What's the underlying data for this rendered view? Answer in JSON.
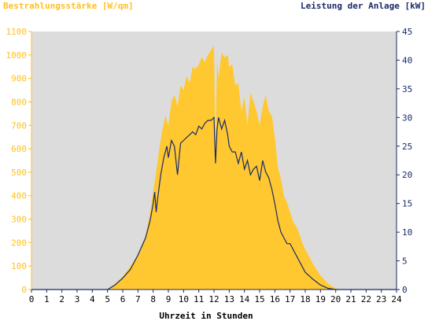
{
  "chart_data": {
    "type": "area",
    "title_left": "Bestrahlungsstärke [W/qm]",
    "title_right": "Leistung der Anlage [kW]",
    "xlabel": "Uhrzeit in Stunden",
    "xlim": [
      0,
      24
    ],
    "ylim_left": [
      0,
      1100
    ],
    "ylim_right": [
      0,
      45
    ],
    "x_ticks": [
      "0",
      "1",
      "2",
      "3",
      "4",
      "5",
      "6",
      "7",
      "8",
      "9",
      "10",
      "11",
      "12",
      "13",
      "14",
      "15",
      "16",
      "17",
      "18",
      "19",
      "20",
      "21",
      "22",
      "23",
      "24"
    ],
    "y_left_ticks": [
      "0",
      "100",
      "200",
      "300",
      "400",
      "500",
      "600",
      "700",
      "800",
      "900",
      "1000",
      "1100"
    ],
    "y_right_ticks": [
      "0",
      "5",
      "10",
      "15",
      "20",
      "25",
      "30",
      "35",
      "40",
      "45"
    ],
    "grid": false,
    "colors": {
      "irradiance": "#FFC830",
      "power": "#1A2A6A",
      "plot_bg": "#DCDCDC",
      "left_axis": "#FFC020",
      "right_axis": "#1A2A6A"
    },
    "series": [
      {
        "name": "Bestrahlungsstärke [W/qm]",
        "axis": "left",
        "style": "area",
        "x": [
          0,
          5,
          5.5,
          6,
          6.5,
          7,
          7.5,
          7.8,
          8,
          8.2,
          8.4,
          8.6,
          8.8,
          9,
          9.2,
          9.4,
          9.6,
          9.8,
          10,
          10.2,
          10.4,
          10.6,
          10.8,
          11,
          11.2,
          11.4,
          11.6,
          11.8,
          12,
          12.1,
          12.2,
          12.3,
          12.5,
          12.7,
          12.9,
          13,
          13.2,
          13.4,
          13.6,
          13.8,
          14,
          14.2,
          14.4,
          14.6,
          14.8,
          15,
          15.2,
          15.4,
          15.6,
          15.8,
          16,
          16.2,
          16.4,
          16.6,
          16.8,
          17,
          17.2,
          17.4,
          17.6,
          17.8,
          18,
          18.5,
          19,
          19.5,
          20,
          20.3,
          24
        ],
        "values": [
          0,
          0,
          25,
          55,
          100,
          150,
          230,
          330,
          420,
          500,
          600,
          680,
          740,
          700,
          800,
          830,
          780,
          870,
          850,
          910,
          880,
          950,
          940,
          960,
          990,
          970,
          1000,
          1020,
          1040,
          600,
          980,
          900,
          1010,
          990,
          1000,
          950,
          960,
          870,
          880,
          760,
          820,
          700,
          840,
          800,
          760,
          700,
          780,
          830,
          760,
          740,
          650,
          520,
          470,
          400,
          370,
          330,
          290,
          270,
          240,
          200,
          170,
          110,
          60,
          25,
          5,
          0,
          0
        ]
      },
      {
        "name": "Leistung der Anlage [kW]",
        "axis": "right",
        "style": "line",
        "x": [
          0,
          5,
          5.5,
          6,
          6.5,
          7,
          7.5,
          7.8,
          8,
          8.1,
          8.2,
          8.3,
          8.5,
          8.7,
          8.9,
          9,
          9.2,
          9.4,
          9.6,
          9.8,
          10,
          10.2,
          10.4,
          10.6,
          10.8,
          11,
          11.2,
          11.4,
          11.6,
          11.8,
          12,
          12.1,
          12.2,
          12.3,
          12.5,
          12.7,
          12.9,
          13,
          13.2,
          13.4,
          13.6,
          13.8,
          14,
          14.2,
          14.4,
          14.6,
          14.8,
          15,
          15.2,
          15.4,
          15.6,
          15.8,
          16,
          16.2,
          16.4,
          16.6,
          16.8,
          17,
          17.2,
          17.4,
          17.6,
          17.8,
          18,
          18.5,
          19,
          19.5,
          20,
          20.3,
          24
        ],
        "values": [
          0,
          0,
          0.8,
          2,
          3.5,
          6,
          9,
          12,
          15,
          17,
          13.5,
          16,
          20,
          23,
          25,
          23,
          26,
          25,
          20,
          25.5,
          26,
          26.5,
          27,
          27.5,
          27,
          28.5,
          28,
          29,
          29.5,
          29.5,
          30,
          22,
          28,
          30,
          28,
          29.5,
          27,
          25,
          24,
          24,
          22,
          24,
          21,
          22.5,
          20,
          21,
          21.5,
          19,
          22.5,
          20.5,
          19.5,
          17.5,
          15,
          12,
          10,
          9,
          8,
          8,
          7,
          6,
          5,
          4,
          3,
          1.8,
          0.8,
          0.2,
          0,
          0,
          0
        ]
      }
    ]
  }
}
